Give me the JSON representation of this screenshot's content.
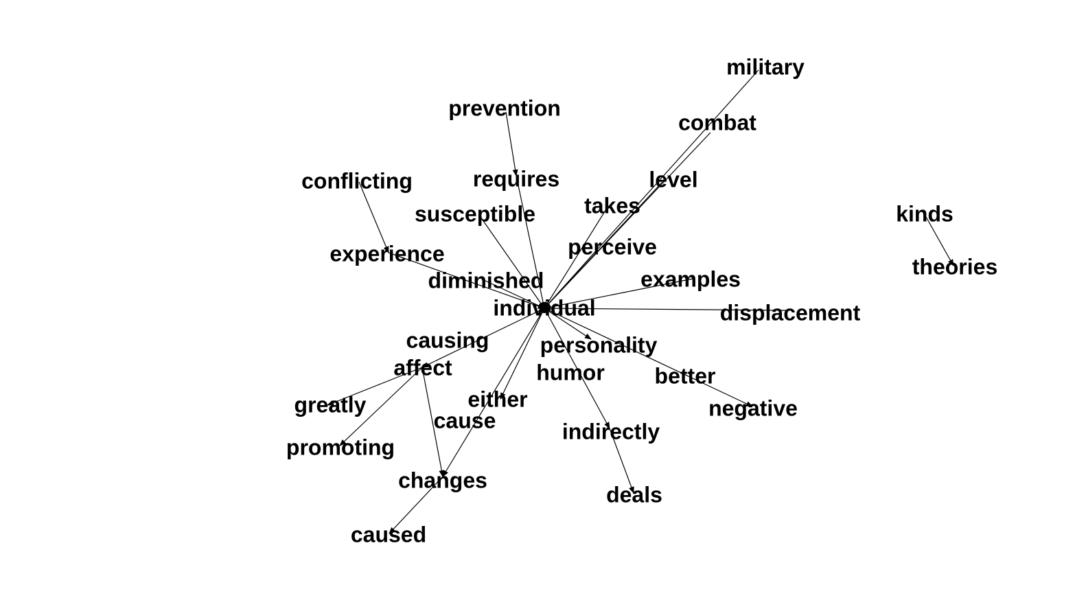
{
  "graph": {
    "nodes": [
      {
        "id": "military",
        "label": "military"
      },
      {
        "id": "combat",
        "label": "combat"
      },
      {
        "id": "prevention",
        "label": "prevention"
      },
      {
        "id": "requires",
        "label": "requires"
      },
      {
        "id": "level",
        "label": "level"
      },
      {
        "id": "conflicting",
        "label": "conflicting"
      },
      {
        "id": "takes",
        "label": "takes"
      },
      {
        "id": "kinds",
        "label": "kinds"
      },
      {
        "id": "susceptible",
        "label": "susceptible"
      },
      {
        "id": "perceive",
        "label": "perceive"
      },
      {
        "id": "experience",
        "label": "experience"
      },
      {
        "id": "theories",
        "label": "theories"
      },
      {
        "id": "examples",
        "label": "examples"
      },
      {
        "id": "diminished",
        "label": "diminished"
      },
      {
        "id": "individual",
        "label": "individual"
      },
      {
        "id": "displacement",
        "label": "displacement"
      },
      {
        "id": "causing",
        "label": "causing"
      },
      {
        "id": "personality",
        "label": "personality"
      },
      {
        "id": "affect",
        "label": "affect"
      },
      {
        "id": "humor",
        "label": "humor"
      },
      {
        "id": "better",
        "label": "better"
      },
      {
        "id": "either",
        "label": "either"
      },
      {
        "id": "greatly",
        "label": "greatly"
      },
      {
        "id": "negative",
        "label": "negative"
      },
      {
        "id": "cause",
        "label": "cause"
      },
      {
        "id": "indirectly",
        "label": "indirectly"
      },
      {
        "id": "promoting",
        "label": "promoting"
      },
      {
        "id": "changes",
        "label": "changes"
      },
      {
        "id": "deals",
        "label": "deals"
      },
      {
        "id": "caused",
        "label": "caused"
      }
    ],
    "edges": [
      {
        "from": "military",
        "to": "individual"
      },
      {
        "from": "combat",
        "to": "individual"
      },
      {
        "from": "prevention",
        "to": "requires"
      },
      {
        "from": "requires",
        "to": "individual"
      },
      {
        "from": "level",
        "to": "individual"
      },
      {
        "from": "conflicting",
        "to": "experience"
      },
      {
        "from": "takes",
        "to": "individual"
      },
      {
        "from": "susceptible",
        "to": "individual"
      },
      {
        "from": "perceive",
        "to": "individual"
      },
      {
        "from": "experience",
        "to": "individual"
      },
      {
        "from": "diminished",
        "to": "individual"
      },
      {
        "from": "examples",
        "to": "individual"
      },
      {
        "from": "displacement",
        "to": "individual"
      },
      {
        "from": "kinds",
        "to": "theories"
      },
      {
        "from": "individual",
        "to": "affect"
      },
      {
        "from": "individual",
        "to": "personality"
      },
      {
        "from": "individual",
        "to": "either"
      },
      {
        "from": "individual",
        "to": "changes"
      },
      {
        "from": "individual",
        "to": "negative"
      },
      {
        "from": "individual",
        "to": "indirectly"
      },
      {
        "from": "affect",
        "to": "greatly"
      },
      {
        "from": "affect",
        "to": "promoting"
      },
      {
        "from": "affect",
        "to": "changes"
      },
      {
        "from": "indirectly",
        "to": "deals"
      },
      {
        "from": "changes",
        "to": "caused"
      }
    ]
  }
}
